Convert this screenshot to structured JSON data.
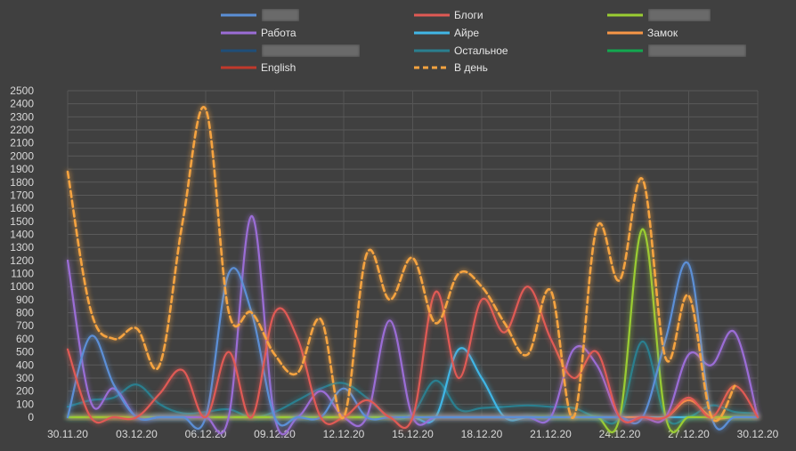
{
  "chart_data": {
    "type": "line",
    "title": "",
    "xlabel": "",
    "ylabel": "",
    "ylim": [
      0,
      2500
    ],
    "y_ticks": [
      0,
      100,
      200,
      300,
      400,
      500,
      600,
      700,
      800,
      900,
      1000,
      1100,
      1200,
      1300,
      1400,
      1500,
      1600,
      1700,
      1800,
      1900,
      2000,
      2100,
      2200,
      2300,
      2400,
      2500
    ],
    "x_labels": [
      "30.11.20",
      "03.12.20",
      "06.12.20",
      "09.12.20",
      "12.12.20",
      "15.12.20",
      "18.12.20",
      "21.12.20",
      "24.12.20",
      "27.12.20",
      "30.12.20"
    ],
    "x_label_days": [
      0,
      3,
      6,
      9,
      12,
      15,
      18,
      21,
      24,
      27,
      30
    ],
    "grid": true,
    "legend_position": "top",
    "background": "#404040",
    "series": [
      {
        "name": "",
        "color": "#5b8fd6",
        "style": "solid",
        "redacted": true,
        "values": [
          0,
          620,
          250,
          0,
          0,
          0,
          0,
          1100,
          800,
          0,
          0,
          0,
          220,
          0,
          0,
          0,
          0,
          0,
          0,
          0,
          0,
          0,
          0,
          0,
          0,
          0,
          600,
          1170,
          0,
          0,
          0
        ]
      },
      {
        "name": "Блоги",
        "color": "#e05a55",
        "style": "solid",
        "values": [
          520,
          0,
          0,
          0,
          180,
          360,
          0,
          500,
          0,
          800,
          600,
          0,
          0,
          130,
          0,
          0,
          960,
          300,
          900,
          650,
          1000,
          600,
          300,
          500,
          0,
          0,
          0,
          150,
          0,
          240,
          0
        ]
      },
      {
        "name": "",
        "color": "#9acd32",
        "style": "solid",
        "redacted": true,
        "values": [
          0,
          0,
          0,
          0,
          0,
          0,
          0,
          0,
          0,
          0,
          0,
          0,
          0,
          0,
          0,
          0,
          0,
          0,
          0,
          0,
          0,
          0,
          0,
          0,
          0,
          1440,
          0,
          0,
          0,
          0,
          0
        ]
      },
      {
        "name": "Работа",
        "color": "#9b6dd6",
        "style": "solid",
        "values": [
          1200,
          120,
          220,
          0,
          0,
          0,
          0,
          0,
          1540,
          0,
          0,
          200,
          0,
          0,
          740,
          0,
          0,
          0,
          0,
          0,
          0,
          0,
          520,
          400,
          0,
          0,
          0,
          480,
          400,
          650,
          0
        ]
      },
      {
        "name": "Айре",
        "color": "#41b6e6",
        "style": "solid",
        "values": [
          0,
          0,
          0,
          0,
          0,
          0,
          0,
          0,
          0,
          0,
          0,
          0,
          0,
          0,
          0,
          0,
          0,
          520,
          300,
          0,
          0,
          0,
          0,
          0,
          0,
          0,
          0,
          0,
          0,
          0,
          0
        ]
      },
      {
        "name": "Замок",
        "color": "#f79646",
        "style": "solid",
        "values": [
          0,
          0,
          0,
          0,
          0,
          0,
          0,
          0,
          0,
          0,
          0,
          0,
          0,
          0,
          0,
          0,
          0,
          0,
          0,
          0,
          0,
          0,
          0,
          0,
          0,
          0,
          0,
          130,
          0,
          0,
          0
        ]
      },
      {
        "name": "",
        "color": "#1f4e79",
        "style": "solid",
        "redacted": true,
        "values": [
          0,
          0,
          0,
          0,
          0,
          0,
          0,
          0,
          0,
          0,
          0,
          0,
          0,
          0,
          0,
          0,
          0,
          0,
          0,
          0,
          0,
          0,
          0,
          0,
          0,
          0,
          0,
          0,
          0,
          0,
          0
        ]
      },
      {
        "name": "Остальное",
        "color": "#2a7f8f",
        "style": "solid",
        "values": [
          80,
          130,
          150,
          250,
          100,
          30,
          40,
          60,
          0,
          40,
          130,
          220,
          260,
          150,
          0,
          30,
          280,
          60,
          70,
          80,
          90,
          80,
          70,
          0,
          0,
          580,
          0,
          0,
          90,
          40,
          30
        ]
      },
      {
        "name": "",
        "color": "#12a84f",
        "style": "solid",
        "redacted": true,
        "values": [
          0,
          0,
          0,
          0,
          0,
          0,
          0,
          0,
          0,
          0,
          0,
          0,
          0,
          0,
          0,
          0,
          0,
          0,
          0,
          0,
          0,
          0,
          0,
          0,
          0,
          0,
          0,
          0,
          0,
          0,
          0
        ]
      },
      {
        "name": "English",
        "color": "#c0392b",
        "style": "solid",
        "values": [
          0,
          0,
          0,
          0,
          0,
          0,
          0,
          0,
          0,
          0,
          0,
          0,
          0,
          0,
          0,
          0,
          0,
          0,
          0,
          0,
          0,
          0,
          0,
          0,
          0,
          0,
          0,
          0,
          0,
          0,
          0
        ]
      },
      {
        "name": "В день",
        "color": "#f5a340",
        "style": "dashed",
        "values": [
          1880,
          820,
          600,
          680,
          400,
          1500,
          2360,
          810,
          800,
          480,
          340,
          750,
          0,
          1250,
          900,
          1220,
          720,
          1100,
          1000,
          720,
          480,
          970,
          0,
          1450,
          1050,
          1820,
          450,
          930,
          0,
          240,
          null
        ]
      }
    ]
  }
}
